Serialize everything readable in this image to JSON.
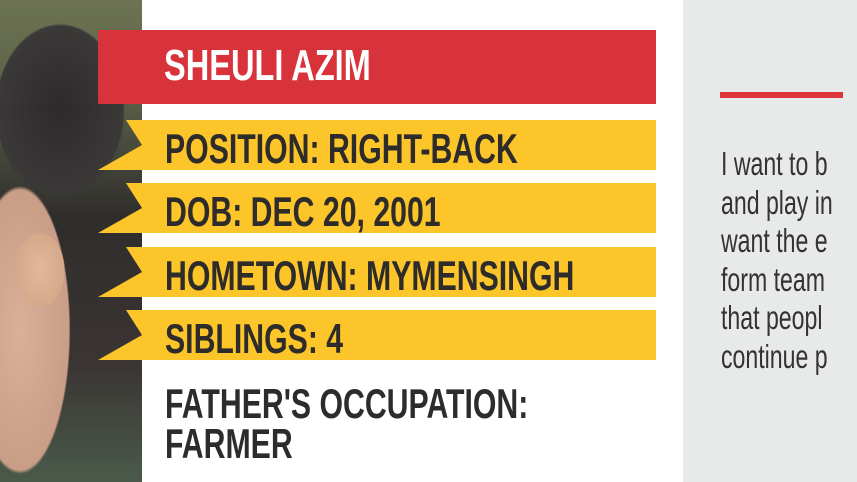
{
  "profile": {
    "name": "SHEULI AZIM",
    "facts": [
      "POSITION: RIGHT-BACK",
      "DOB: DEC 20, 2001",
      "HOMETOWN: MYMENSINGH",
      "SIBLINGS: 4"
    ],
    "occupation_line1": "FATHER'S OCCUPATION:",
    "occupation_line2": "FARMER"
  },
  "quote": {
    "lines": [
      "I want to b",
      "and play in",
      "want the e",
      "form team",
      "that peopl",
      "continue p"
    ]
  },
  "colors": {
    "red": "#d8333a",
    "yellow": "#fcc52a",
    "text": "#2e2b2b",
    "panel": "#e8e9e9"
  }
}
